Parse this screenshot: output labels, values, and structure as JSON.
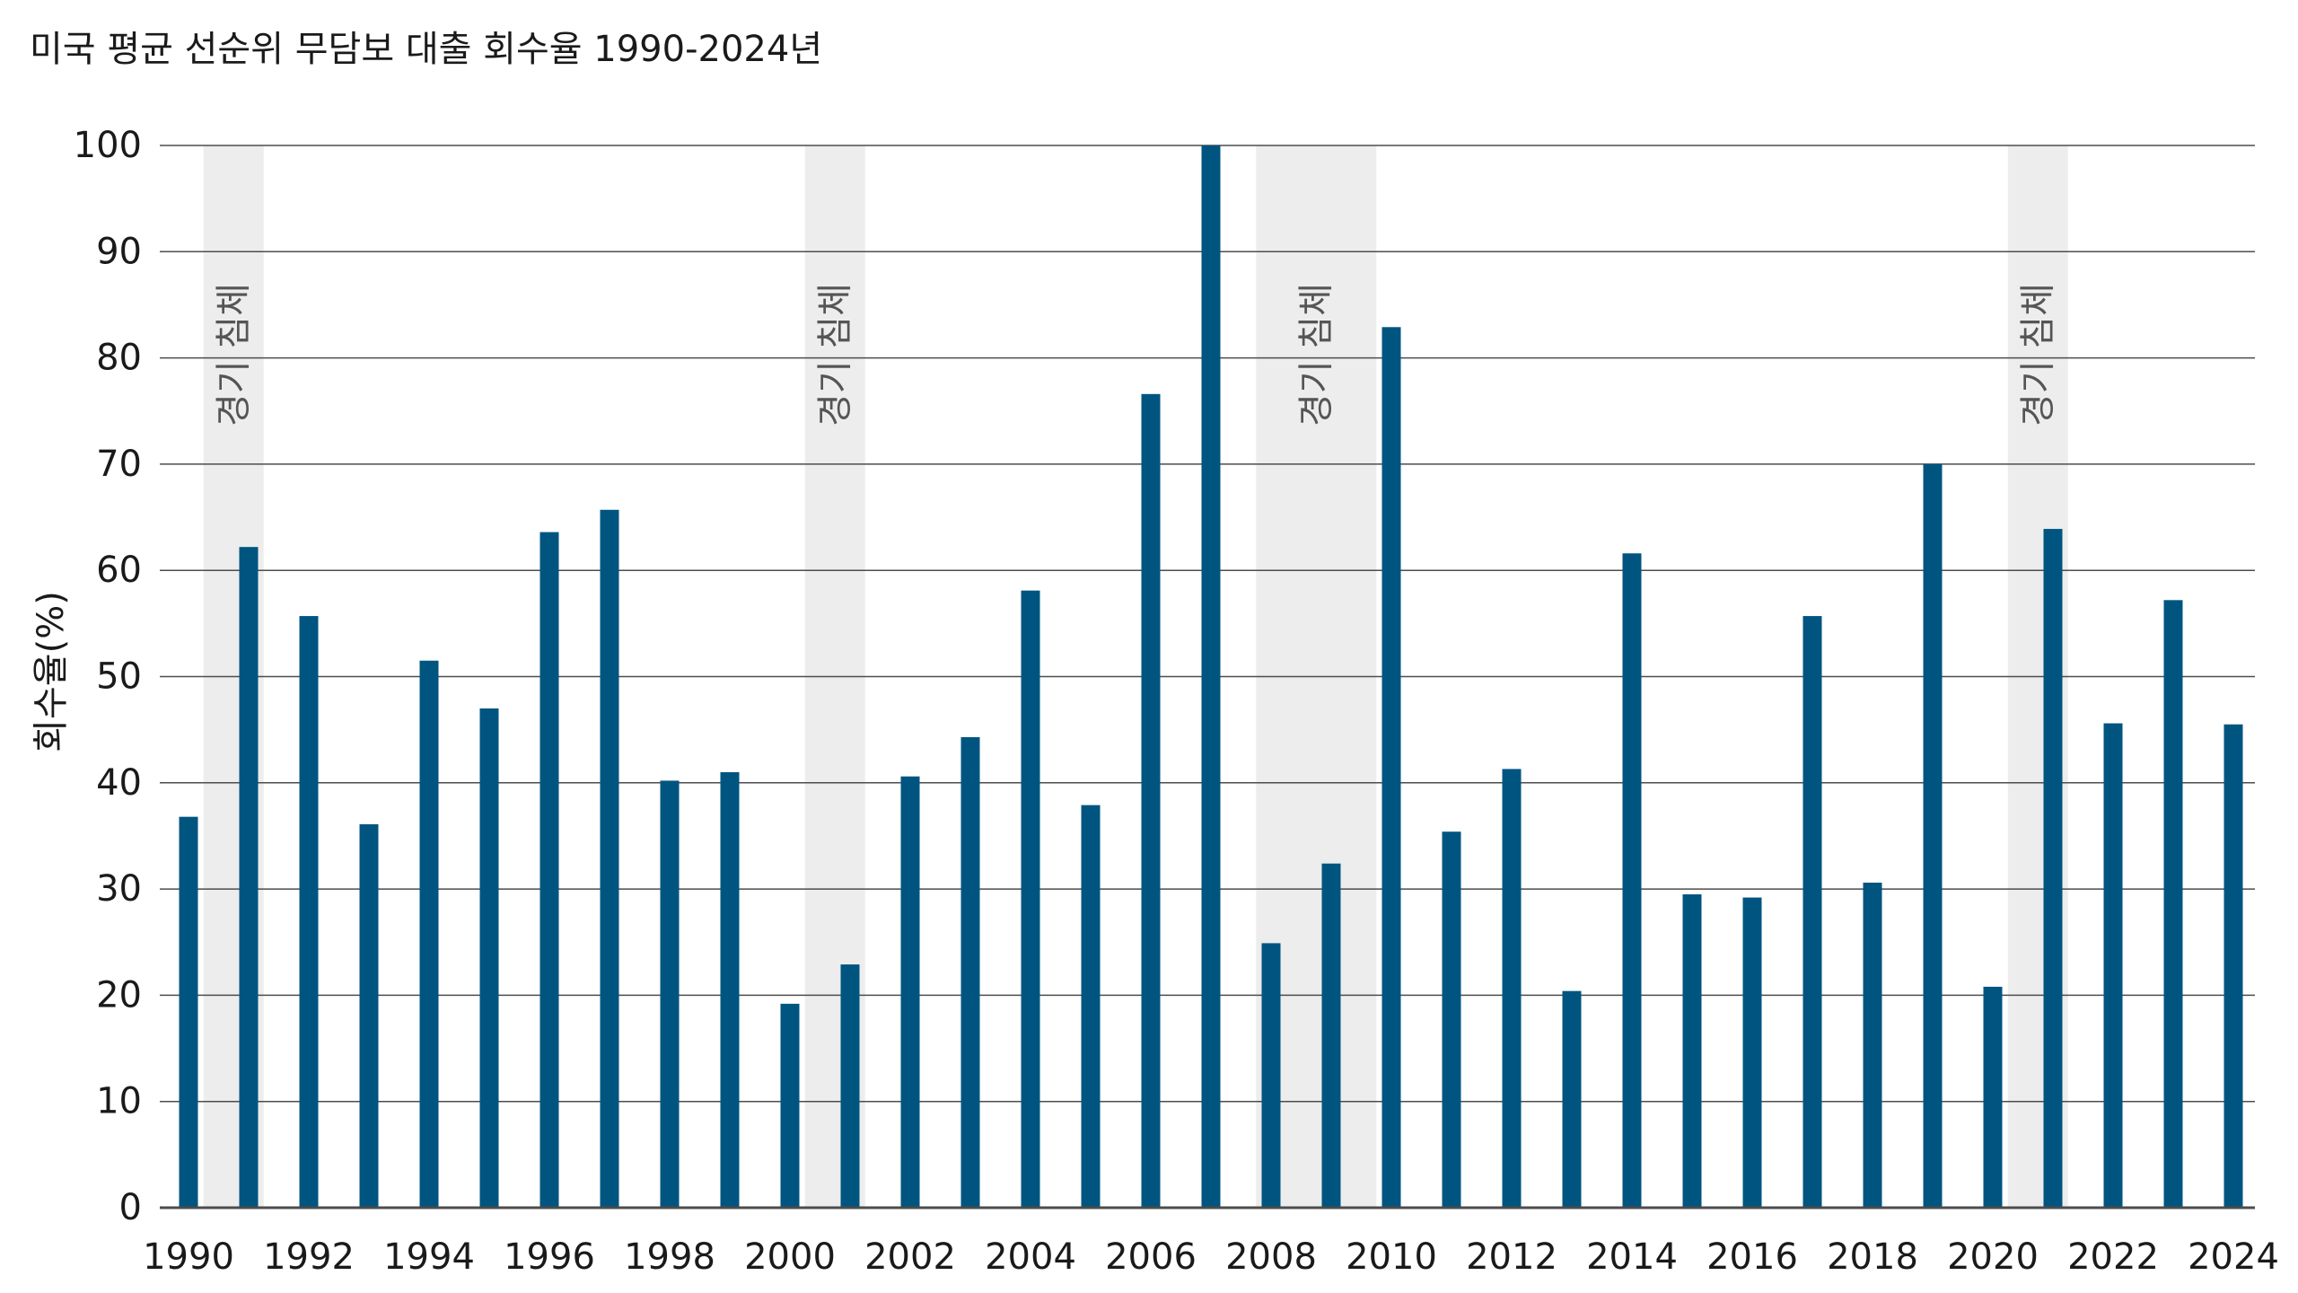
{
  "chart_data": {
    "type": "bar",
    "title": "미국 평균 선순위 무담보 대출 회수율 1990-2024년",
    "ylabel": "회수율(%)",
    "xlabel": "",
    "ylim": [
      0,
      100
    ],
    "yticks": [
      0,
      10,
      20,
      30,
      40,
      50,
      60,
      70,
      80,
      90,
      100
    ],
    "xtick_labels": [
      "1990",
      "1992",
      "1994",
      "1996",
      "1998",
      "2000",
      "2002",
      "2004",
      "2006",
      "2008",
      "2010",
      "2012",
      "2014",
      "2016",
      "2018",
      "2020",
      "2022",
      "2024"
    ],
    "categories": [
      "1990",
      "1991",
      "1992",
      "1993",
      "1994",
      "1995",
      "1996",
      "1997",
      "1998",
      "1999",
      "2000",
      "2001",
      "2002",
      "2003",
      "2004",
      "2005",
      "2006",
      "2007",
      "2008",
      "2009",
      "2010",
      "2011",
      "2012",
      "2013",
      "2014",
      "2015",
      "2016",
      "2017",
      "2018",
      "2019",
      "2020",
      "2021",
      "2022",
      "2023",
      "2024"
    ],
    "values": [
      36.8,
      62.2,
      55.7,
      36.1,
      51.5,
      47.0,
      63.6,
      65.7,
      40.2,
      41.0,
      19.2,
      22.9,
      40.6,
      44.3,
      58.1,
      37.9,
      76.6,
      100.0,
      24.9,
      32.4,
      82.9,
      35.4,
      41.3,
      20.4,
      61.6,
      29.5,
      29.2,
      55.7,
      30.6,
      70.0,
      20.8,
      63.9,
      45.6,
      57.2,
      45.5
    ],
    "recessions": [
      {
        "start": 1990.25,
        "end": 1991.25,
        "label": "경기 침체"
      },
      {
        "start": 2000.25,
        "end": 2001.25,
        "label": "경기 침체"
      },
      {
        "start": 2007.75,
        "end": 2009.75,
        "label": "경기 침체"
      },
      {
        "start": 2020.25,
        "end": 2021.25,
        "label": "경기 침체"
      }
    ],
    "colors": {
      "bar": "#005580",
      "recession": "#ededed",
      "grid": "#4d4d4d",
      "axis": "#4d4d4d"
    },
    "grid": true,
    "legend": "none"
  }
}
